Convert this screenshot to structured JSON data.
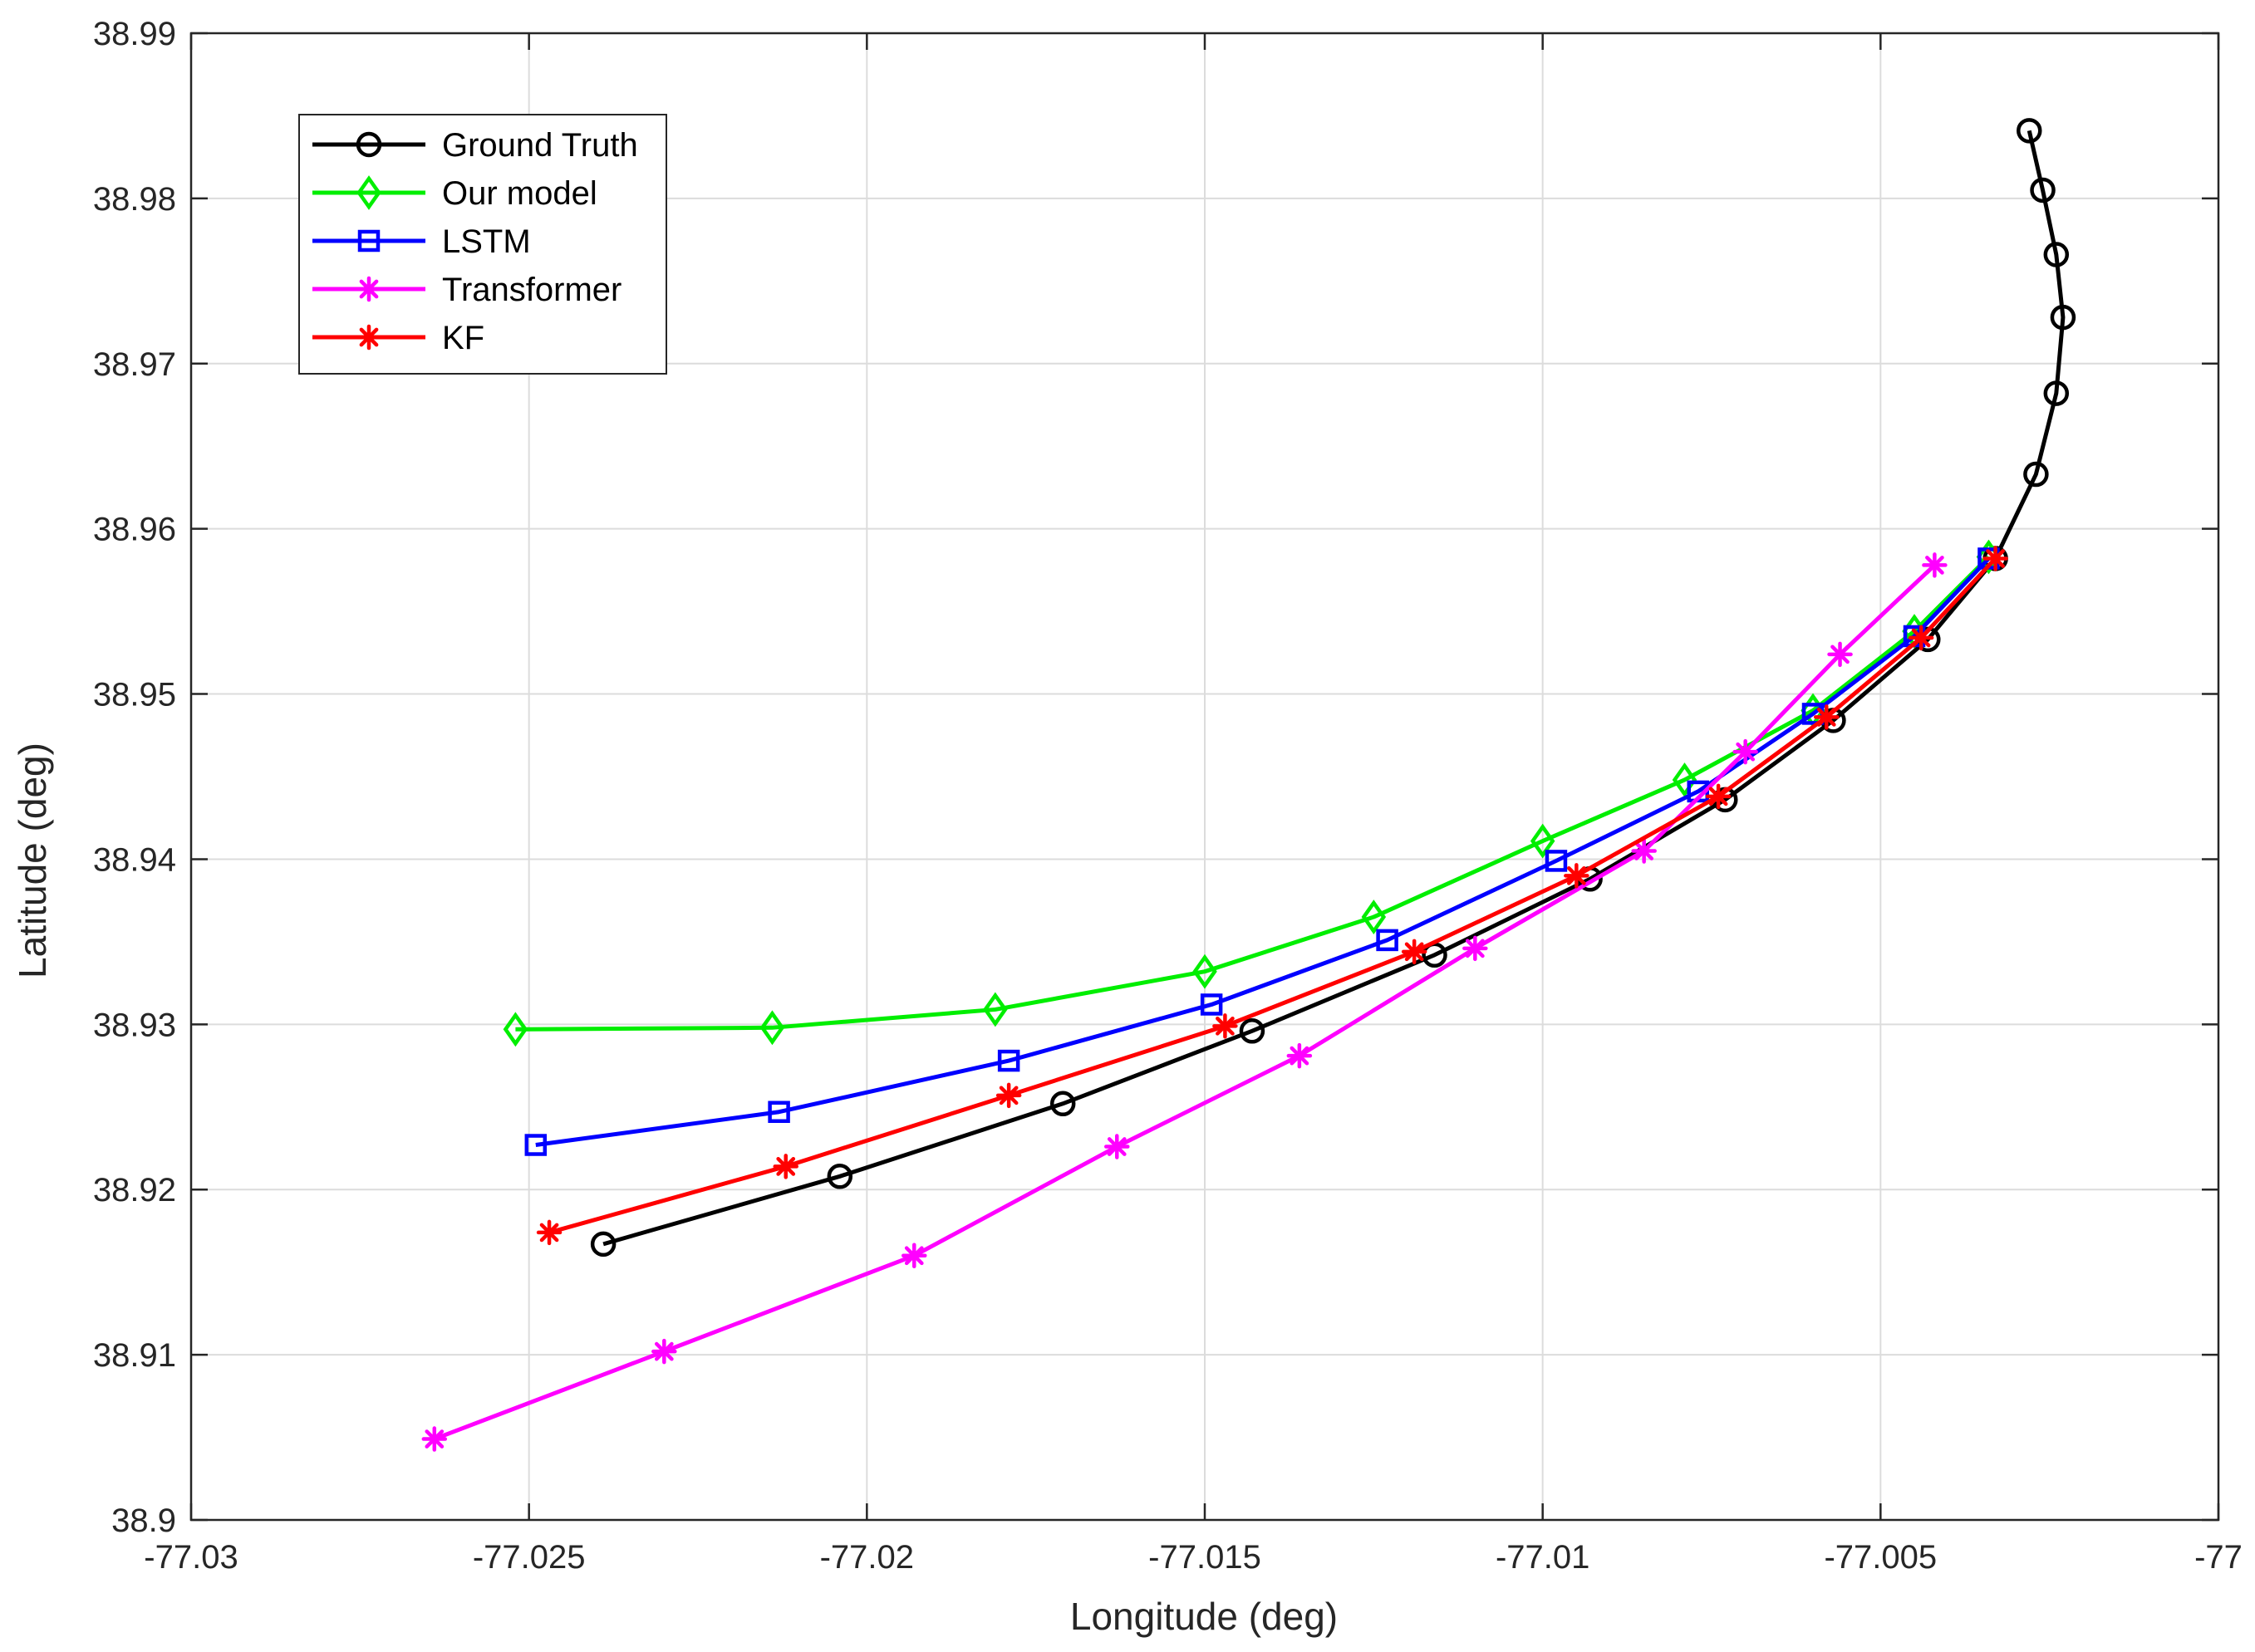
{
  "chart_data": {
    "type": "line",
    "title": "",
    "xlabel": "Longitude (deg)",
    "ylabel": "Latitude (deg)",
    "xlim": [
      -77.03,
      -77.0
    ],
    "ylim": [
      38.9,
      38.99
    ],
    "xticks": [
      -77.03,
      -77.025,
      -77.02,
      -77.015,
      -77.01,
      -77.005,
      -77.0
    ],
    "xtick_labels": [
      "-77.03",
      "-77.025",
      "-77.02",
      "-77.015",
      "-77.01",
      "-77.005",
      "-77"
    ],
    "yticks": [
      38.9,
      38.91,
      38.92,
      38.93,
      38.94,
      38.95,
      38.96,
      38.97,
      38.98,
      38.99
    ],
    "ytick_labels": [
      "38.9",
      "38.91",
      "38.92",
      "38.93",
      "38.94",
      "38.95",
      "38.96",
      "38.97",
      "38.98",
      "38.99"
    ],
    "grid": true,
    "legend_position": "top-left",
    "series": [
      {
        "name": "Ground Truth",
        "color": "#000000",
        "marker": "circle",
        "points": [
          [
            -77.0028,
            38.9841
          ],
          [
            -77.0026,
            38.9805
          ],
          [
            -77.0024,
            38.9766
          ],
          [
            -77.0023,
            38.9728
          ],
          [
            -77.0024,
            38.9682
          ],
          [
            -77.0027,
            38.9633
          ],
          [
            -77.0033,
            38.9582
          ],
          [
            -77.0043,
            38.9533
          ],
          [
            -77.0057,
            38.9484
          ],
          [
            -77.0073,
            38.9436
          ],
          [
            -77.0093,
            38.9388
          ],
          [
            -77.0116,
            38.9342
          ],
          [
            -77.0143,
            38.9296
          ],
          [
            -77.0171,
            38.9252
          ],
          [
            -77.0204,
            38.9208
          ],
          [
            -77.0239,
            38.9167
          ]
        ]
      },
      {
        "name": "Our model",
        "color": "#00ee00",
        "marker": "diamond",
        "points": [
          [
            -77.0034,
            38.9583
          ],
          [
            -77.0045,
            38.9538
          ],
          [
            -77.006,
            38.949
          ],
          [
            -77.0079,
            38.9448
          ],
          [
            -77.01,
            38.9411
          ],
          [
            -77.0125,
            38.9365
          ],
          [
            -77.015,
            38.9332
          ],
          [
            -77.0181,
            38.9309
          ],
          [
            -77.0214,
            38.9298
          ],
          [
            -77.0252,
            38.9297
          ]
        ]
      },
      {
        "name": "LSTM",
        "color": "#0000ff",
        "marker": "square",
        "points": [
          [
            -77.0034,
            38.9582
          ],
          [
            -77.0045,
            38.9535
          ],
          [
            -77.006,
            38.9488
          ],
          [
            -77.0077,
            38.9441
          ],
          [
            -77.0098,
            38.9399
          ],
          [
            -77.0123,
            38.9351
          ],
          [
            -77.0149,
            38.9312
          ],
          [
            -77.0179,
            38.9278
          ],
          [
            -77.0213,
            38.9247
          ],
          [
            -77.0249,
            38.9227
          ]
        ]
      },
      {
        "name": "Transformer",
        "color": "#ff00ff",
        "marker": "asterisk",
        "points": [
          [
            -77.0042,
            38.9578
          ],
          [
            -77.0056,
            38.9524
          ],
          [
            -77.007,
            38.9465
          ],
          [
            -77.0085,
            38.9405
          ],
          [
            -77.011,
            38.9346
          ],
          [
            -77.0136,
            38.9281
          ],
          [
            -77.0163,
            38.9226
          ],
          [
            -77.0193,
            38.916
          ],
          [
            -77.023,
            38.9102
          ],
          [
            -77.0264,
            38.9049
          ]
        ]
      },
      {
        "name": "KF",
        "color": "#ff0000",
        "marker": "asterisk",
        "points": [
          [
            -77.0033,
            38.9582
          ],
          [
            -77.0044,
            38.9534
          ],
          [
            -77.0058,
            38.9486
          ],
          [
            -77.0074,
            38.9438
          ],
          [
            -77.0095,
            38.939
          ],
          [
            -77.0119,
            38.9344
          ],
          [
            -77.0147,
            38.9299
          ],
          [
            -77.0179,
            38.9257
          ],
          [
            -77.0212,
            38.9214
          ],
          [
            -77.0247,
            38.9174
          ]
        ]
      }
    ]
  }
}
